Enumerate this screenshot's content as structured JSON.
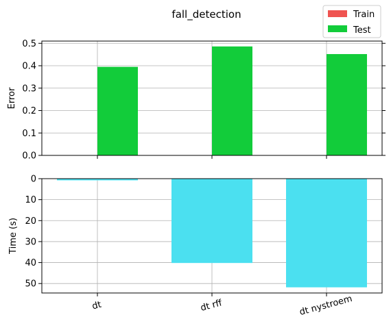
{
  "chart_data": [
    {
      "type": "bar",
      "title": "fall_detection",
      "ylabel": "Error",
      "categories": [
        "dt",
        "dt rff",
        "dt nystroem"
      ],
      "ylim": [
        0,
        0.51
      ],
      "yticks": [
        "0.0",
        "0.1",
        "0.2",
        "0.3",
        "0.4",
        "0.5"
      ],
      "grid": true,
      "legend": "top-right",
      "series": [
        {
          "name": "Train",
          "color": "#ef5350",
          "values": [
            0.0,
            0.0,
            0.0
          ]
        },
        {
          "name": "Test",
          "color": "#12cc3a",
          "values": [
            0.395,
            0.486,
            0.452
          ]
        }
      ]
    },
    {
      "type": "bar",
      "ylabel": "Time (s)",
      "categories": [
        "dt",
        "dt rff",
        "dt nystroem"
      ],
      "ylim": [
        0,
        54.5
      ],
      "inverted_y": true,
      "yticks": [
        "0",
        "10",
        "20",
        "30",
        "40",
        "50"
      ],
      "grid": true,
      "series": [
        {
          "color": "#4be0f0",
          "values": [
            0.8,
            40.2,
            51.8
          ]
        }
      ]
    }
  ]
}
